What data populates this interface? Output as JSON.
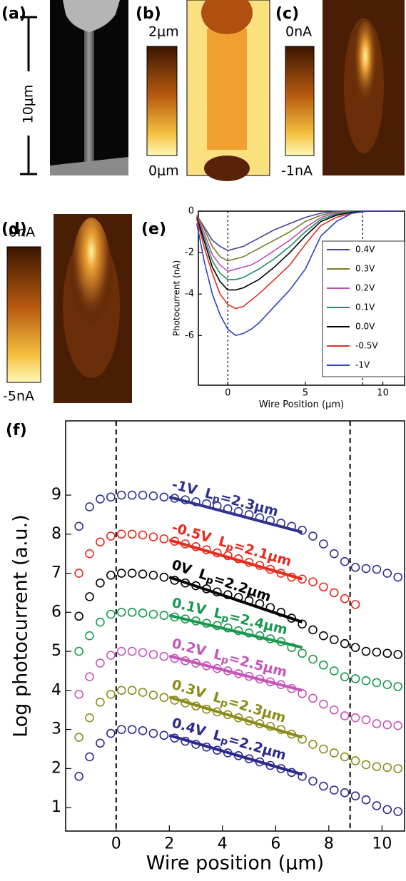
{
  "panels": {
    "a": {
      "label": "(a)",
      "scale_bar": "10μm"
    },
    "b": {
      "label": "(b)",
      "colorbar_top": "2μm",
      "colorbar_bottom": "0μm"
    },
    "c": {
      "label": "(c)",
      "colorbar_top": "0nA",
      "colorbar_bottom": "-1nA"
    },
    "d": {
      "label": "(d)",
      "colorbar_top": "0nA",
      "colorbar_bottom": "-5nA"
    }
  },
  "chart_data": [
    {
      "type": "line",
      "label": "(e)",
      "x_label": "Wire Position (μm)",
      "y_label": "Photocurrent (nA)",
      "xlim": [
        -1.9,
        11.4
      ],
      "ylim": [
        -8.4,
        0
      ],
      "xticks": [
        0,
        5,
        10
      ],
      "yticks": [
        0,
        -2,
        -4,
        -6
      ],
      "vlines": [
        0,
        8.7
      ],
      "legend": "right",
      "x": [
        -2,
        -1.5,
        -1,
        -0.5,
        0,
        0.5,
        1,
        1.5,
        2,
        3,
        4,
        5,
        6,
        7,
        8,
        9,
        10,
        11
      ],
      "series": [
        {
          "name": "0.4V",
          "color": "#4b3f9c",
          "values": [
            -0.2,
            -0.8,
            -1.4,
            -1.7,
            -1.9,
            -1.8,
            -1.7,
            -1.5,
            -1.3,
            -0.9,
            -0.6,
            -0.3,
            -0.1,
            0,
            0,
            0,
            0,
            0
          ]
        },
        {
          "name": "0.3V",
          "color": "#7a7a2a",
          "values": [
            -0.2,
            -0.9,
            -1.7,
            -2.2,
            -2.4,
            -2.3,
            -2.2,
            -2.0,
            -1.8,
            -1.4,
            -1.0,
            -0.5,
            -0.2,
            -0.05,
            0,
            0,
            0,
            0
          ]
        },
        {
          "name": "0.2V",
          "color": "#c050b0",
          "values": [
            -0.25,
            -1.1,
            -2.1,
            -2.6,
            -2.9,
            -2.8,
            -2.7,
            -2.6,
            -2.4,
            -1.9,
            -1.4,
            -0.8,
            -0.3,
            -0.1,
            0,
            0,
            0,
            0
          ]
        },
        {
          "name": "0.1V",
          "color": "#1a9060",
          "values": [
            -0.3,
            -1.3,
            -2.4,
            -3.0,
            -3.3,
            -3.3,
            -3.2,
            -3.0,
            -2.8,
            -2.3,
            -1.7,
            -1.0,
            -0.4,
            -0.15,
            0,
            0,
            0,
            0
          ]
        },
        {
          "name": "0.0V",
          "color": "#000000",
          "values": [
            -0.3,
            -1.5,
            -2.7,
            -3.4,
            -3.8,
            -3.8,
            -3.7,
            -3.5,
            -3.3,
            -2.7,
            -2.0,
            -1.2,
            -0.5,
            -0.2,
            -0.05,
            0,
            0,
            0
          ]
        },
        {
          "name": "-0.5V",
          "color": "#e03020",
          "values": [
            -0.4,
            -1.8,
            -3,
            -4,
            -4.5,
            -4.7,
            -4.6,
            -4.3,
            -4.0,
            -3.3,
            -2.6,
            -1.6,
            -0.7,
            -0.3,
            -0.1,
            0,
            0,
            0
          ]
        },
        {
          "name": "-1V",
          "color": "#3040c0",
          "values": [
            -0.6,
            -2.5,
            -4,
            -5,
            -5.7,
            -6,
            -5.9,
            -5.7,
            -5.4,
            -4.6,
            -3.8,
            -2.8,
            -1.2,
            -0.5,
            -0.1,
            0,
            0,
            0
          ]
        }
      ]
    },
    {
      "type": "scatter",
      "label": "(f)",
      "x_label": "Wire position (μm)",
      "y_label": "Log photocurrent (a.u.)",
      "xlim": [
        -1.9,
        10.85
      ],
      "ylim": [
        0.4,
        10.9
      ],
      "xticks": [
        0,
        2,
        4,
        6,
        8,
        10
      ],
      "yticks": [
        1,
        2,
        3,
        4,
        5,
        6,
        7,
        8,
        9
      ],
      "vlines": [
        0,
        8.8
      ],
      "fit_symbol": "L",
      "fit_subscript": "p",
      "fit_x": [
        2,
        7
      ],
      "x": [
        -1.4,
        -1.0,
        -0.6,
        -0.2,
        0.2,
        0.6,
        1.0,
        1.4,
        1.8,
        2.2,
        2.6,
        3.0,
        3.4,
        3.8,
        4.2,
        4.6,
        5.0,
        5.4,
        5.8,
        6.2,
        6.6,
        7.0,
        7.4,
        7.8,
        8.2,
        8.6,
        9.0,
        9.4,
        9.8,
        10.2,
        10.6
      ],
      "series": [
        {
          "name": "-1V",
          "color": "#2e3192",
          "fit_label": "=2.3μm",
          "fit_values": [
            8.95,
            8.05
          ],
          "values": [
            8.2,
            8.7,
            8.9,
            8.95,
            9.0,
            9.0,
            9.0,
            8.98,
            8.95,
            8.92,
            8.88,
            8.83,
            8.78,
            8.72,
            8.65,
            8.58,
            8.5,
            8.42,
            8.35,
            8.28,
            8.2,
            8.1,
            7.95,
            7.75,
            7.5,
            7.3,
            7.15,
            7.12,
            7.1,
            7.0,
            6.9
          ]
        },
        {
          "name": "-0.5V",
          "color": "#e8291c",
          "fit_label": "=2.1μm",
          "fit_values": [
            7.85,
            6.85
          ],
          "values": [
            7.0,
            7.5,
            7.8,
            7.95,
            8.0,
            8.0,
            7.98,
            7.93,
            7.88,
            7.82,
            7.75,
            7.68,
            7.6,
            7.52,
            7.45,
            7.37,
            7.28,
            7.2,
            7.1,
            7.0,
            6.9,
            6.85,
            6.78,
            6.65,
            6.5,
            6.35,
            6.2,
            null,
            null,
            null,
            null
          ]
        },
        {
          "name": "0V",
          "color": "#000000",
          "fit_label": "=2.2μm",
          "fit_values": [
            6.9,
            5.75
          ],
          "values": [
            5.9,
            6.4,
            6.75,
            6.95,
            7.0,
            7.0,
            6.98,
            6.95,
            6.9,
            6.82,
            6.75,
            6.68,
            6.6,
            6.52,
            6.45,
            6.38,
            6.3,
            6.22,
            6.12,
            6.0,
            5.85,
            5.7,
            5.55,
            5.4,
            5.3,
            5.2,
            5.1,
            5.0,
            4.98,
            4.95,
            4.92
          ]
        },
        {
          "name": "0.1V",
          "color": "#1a9850",
          "fit_label": "=2.4μm",
          "fit_values": [
            5.92,
            5.1
          ],
          "values": [
            5.0,
            5.4,
            5.75,
            5.95,
            6.0,
            6.0,
            5.98,
            5.95,
            5.92,
            5.88,
            5.83,
            5.78,
            5.72,
            5.66,
            5.6,
            5.53,
            5.47,
            5.4,
            5.32,
            5.25,
            5.1,
            4.95,
            4.8,
            4.65,
            4.5,
            4.35,
            4.3,
            4.25,
            4.2,
            4.15,
            4.1
          ]
        },
        {
          "name": "0.2V",
          "color": "#c655b8",
          "fit_label": "=2.5μm",
          "fit_values": [
            4.88,
            4.0
          ],
          "values": [
            3.9,
            4.35,
            4.7,
            4.9,
            5.0,
            5.0,
            4.97,
            4.92,
            4.87,
            4.82,
            4.76,
            4.7,
            4.63,
            4.56,
            4.5,
            4.43,
            4.36,
            4.29,
            4.22,
            4.15,
            4.05,
            3.92,
            3.8,
            3.65,
            3.5,
            3.35,
            3.3,
            3.25,
            3.15,
            3.12,
            3.1
          ]
        },
        {
          "name": "0.3V",
          "color": "#8b8b1a",
          "fit_label": "=2.3μm",
          "fit_values": [
            3.83,
            2.8
          ],
          "values": [
            2.8,
            3.3,
            3.7,
            3.9,
            4.0,
            4.0,
            3.95,
            3.88,
            3.82,
            3.75,
            3.68,
            3.6,
            3.52,
            3.45,
            3.38,
            3.3,
            3.22,
            3.15,
            3.08,
            3.0,
            2.88,
            2.75,
            2.62,
            2.5,
            2.4,
            2.3,
            2.2,
            2.1,
            2.05,
            2.03,
            2.0
          ]
        },
        {
          "name": "0.4V",
          "color": "#2b2b8f",
          "fit_label": "=2.2μm",
          "fit_values": [
            2.85,
            1.85
          ],
          "values": [
            1.8,
            2.3,
            2.65,
            2.9,
            3.0,
            3.0,
            2.97,
            2.9,
            2.85,
            2.78,
            2.7,
            2.62,
            2.55,
            2.47,
            2.4,
            2.33,
            2.25,
            2.17,
            2.08,
            2.0,
            1.9,
            1.8,
            1.68,
            1.55,
            1.45,
            1.38,
            1.3,
            1.2,
            1.05,
            0.95,
            0.9
          ]
        }
      ]
    }
  ]
}
